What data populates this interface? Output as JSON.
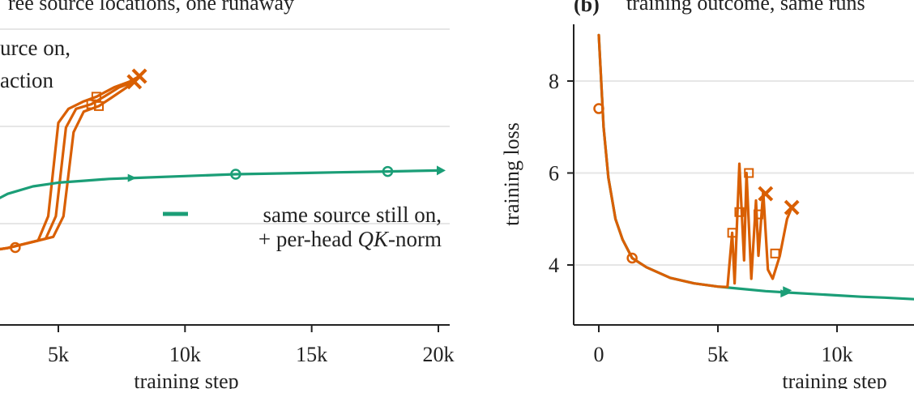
{
  "colors": {
    "orange": "#d95f02",
    "teal": "#1b9e77",
    "grid": "#e6e6e6",
    "axis": "#222222"
  },
  "chart_data": [
    {
      "type": "line",
      "title": "ree source locations, one runaway",
      "xlabel": "training step",
      "ylabel": "",
      "xlim": [
        1500,
        21000
      ],
      "x_ticks": [
        5000,
        10000,
        15000,
        20000
      ],
      "x_tick_labels": [
        "5k",
        "10k",
        "15k",
        "20k"
      ],
      "grid": true,
      "annotations": [
        {
          "lines": [
            "urce on,",
            " action"
          ],
          "color": "#222222"
        },
        {
          "lines": [
            "same source still on,",
            "+ per-head QK-norm"
          ],
          "color": "#222222"
        }
      ],
      "series": [
        {
          "color": "#d95f02",
          "x": [
            1500,
            3000,
            4200,
            4600,
            5000,
            5400,
            6000,
            6500,
            7200,
            7800,
            8200
          ],
          "y": [
            0.0,
            0.06,
            0.14,
            0.4,
            1.4,
            1.55,
            1.63,
            1.68,
            1.78,
            1.84,
            1.9
          ]
        },
        {
          "color": "#d95f02",
          "x": [
            1500,
            3000,
            4500,
            4900,
            5300,
            5700,
            6300,
            6800,
            7400,
            8000
          ],
          "y": [
            0.0,
            0.06,
            0.16,
            0.4,
            1.35,
            1.55,
            1.6,
            1.68,
            1.78,
            1.84
          ]
        },
        {
          "color": "#d95f02",
          "x": [
            1500,
            3000,
            4800,
            5200,
            5600,
            6000,
            6600,
            7100,
            7700,
            8200
          ],
          "y": [
            0.0,
            0.06,
            0.18,
            0.4,
            1.3,
            1.52,
            1.58,
            1.67,
            1.78,
            1.9
          ]
        },
        {
          "color": "#1b9e77",
          "x": [
            1500,
            2000,
            3000,
            4000,
            5000,
            6000,
            7000,
            8000,
            10000,
            12000,
            14000,
            16000,
            18000,
            20000
          ],
          "y": [
            0.45,
            0.5,
            0.64,
            0.72,
            0.76,
            0.78,
            0.8,
            0.81,
            0.83,
            0.85,
            0.86,
            0.87,
            0.88,
            0.89
          ]
        }
      ]
    },
    {
      "type": "line",
      "title": "training outcome, same runs",
      "panel_label": "(b)",
      "xlabel": "training step",
      "ylabel": "training loss",
      "xlim": [
        -1000,
        13500
      ],
      "ylim": [
        2.7,
        9.2
      ],
      "x_ticks": [
        0,
        5000,
        10000
      ],
      "x_tick_labels": [
        "0",
        "5k",
        "10k"
      ],
      "y_ticks": [
        4,
        6,
        8
      ],
      "y_tick_labels": [
        "4",
        "6",
        "8"
      ],
      "grid": true,
      "series": [
        {
          "color": "#1b9e77",
          "x": [
            0,
            200,
            400,
            700,
            1000,
            1400,
            2000,
            3000,
            4000,
            5000,
            6000,
            7000,
            8000,
            9000,
            10000,
            11000,
            12000,
            13500
          ],
          "y": [
            9.0,
            7.0,
            5.9,
            5.0,
            4.55,
            4.15,
            3.95,
            3.72,
            3.6,
            3.53,
            3.48,
            3.43,
            3.4,
            3.37,
            3.34,
            3.31,
            3.29,
            3.25
          ]
        },
        {
          "color": "#d95f02",
          "x": [
            0,
            200,
            400,
            700,
            1000,
            1400,
            2000,
            3000,
            4000,
            5000,
            5400,
            5600,
            5700,
            5900,
            6100,
            6200,
            6400,
            6600,
            6700,
            6900,
            7100,
            7300,
            7600,
            7900,
            8100
          ],
          "y": [
            9.0,
            7.0,
            5.9,
            5.0,
            4.55,
            4.15,
            3.95,
            3.72,
            3.6,
            3.53,
            3.52,
            4.7,
            3.6,
            6.2,
            4.1,
            6.0,
            3.7,
            5.4,
            4.2,
            5.6,
            3.9,
            3.7,
            4.2,
            5.0,
            5.25
          ]
        }
      ]
    }
  ]
}
